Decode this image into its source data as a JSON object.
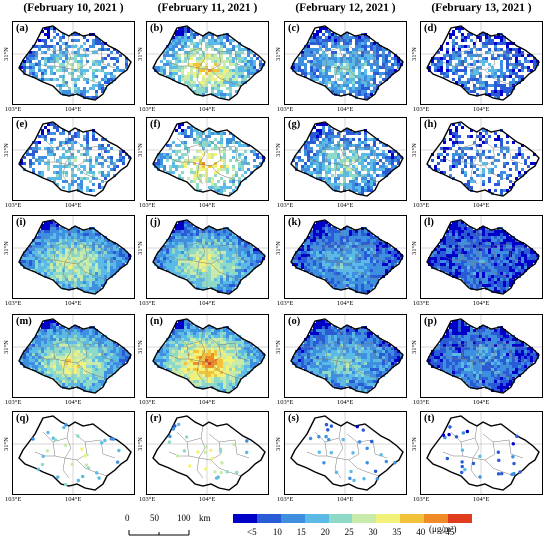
{
  "columns": [
    {
      "title": "(February 10, 2021 )"
    },
    {
      "title": "(February 11, 2021 )"
    },
    {
      "title": "(February 12, 2021 )"
    },
    {
      "title": "(February 13, 2021 )"
    }
  ],
  "axis": {
    "lat_label": "31°N",
    "lon_left": "103°E",
    "lon_mid": "104°E"
  },
  "panels": [
    {
      "label": "(a)",
      "row": 0,
      "col": 0,
      "coverage": 0.55,
      "level": 0.35
    },
    {
      "label": "(b)",
      "row": 0,
      "col": 1,
      "coverage": 0.75,
      "level": 0.55
    },
    {
      "label": "(c)",
      "row": 0,
      "col": 2,
      "coverage": 0.8,
      "level": 0.3
    },
    {
      "label": "(d)",
      "row": 0,
      "col": 3,
      "coverage": 0.6,
      "level": 0.2
    },
    {
      "label": "(e)",
      "row": 1,
      "col": 0,
      "coverage": 0.45,
      "level": 0.35
    },
    {
      "label": "(f)",
      "row": 1,
      "col": 1,
      "coverage": 0.55,
      "level": 0.55
    },
    {
      "label": "(g)",
      "row": 1,
      "col": 2,
      "coverage": 0.7,
      "level": 0.35
    },
    {
      "label": "(h)",
      "row": 1,
      "col": 3,
      "coverage": 0.4,
      "level": 0.18
    },
    {
      "label": "(i)",
      "row": 2,
      "col": 0,
      "coverage": 1.0,
      "level": 0.45
    },
    {
      "label": "(j)",
      "row": 2,
      "col": 1,
      "coverage": 1.0,
      "level": 0.45
    },
    {
      "label": "(k)",
      "row": 2,
      "col": 2,
      "coverage": 1.0,
      "level": 0.25
    },
    {
      "label": "(l)",
      "row": 2,
      "col": 3,
      "coverage": 1.0,
      "level": 0.15
    },
    {
      "label": "(m)",
      "row": 3,
      "col": 0,
      "coverage": 1.0,
      "level": 0.5
    },
    {
      "label": "(n)",
      "row": 3,
      "col": 1,
      "coverage": 1.0,
      "level": 0.65
    },
    {
      "label": "(o)",
      "row": 3,
      "col": 2,
      "coverage": 1.0,
      "level": 0.32
    },
    {
      "label": "(p)",
      "row": 3,
      "col": 3,
      "coverage": 1.0,
      "level": 0.2
    },
    {
      "label": "(q)",
      "row": 4,
      "col": 0,
      "coverage": 0.0,
      "level": 0.5,
      "stations": true
    },
    {
      "label": "(r)",
      "row": 4,
      "col": 1,
      "coverage": 0.0,
      "level": 0.55,
      "stations": true
    },
    {
      "label": "(s)",
      "row": 4,
      "col": 2,
      "coverage": 0.0,
      "level": 0.3,
      "stations": true
    },
    {
      "label": "(t)",
      "row": 4,
      "col": 3,
      "coverage": 0.0,
      "level": 0.2,
      "stations": true
    }
  ],
  "scalebar": {
    "ticks": [
      "0",
      "50",
      "100"
    ],
    "unit": "km"
  },
  "colorbar": {
    "colors": [
      "#0000c8",
      "#2a5bd7",
      "#3f8fe0",
      "#5bbbe6",
      "#8fd9c8",
      "#c8ebac",
      "#f2f27a",
      "#f2c23a",
      "#f08c28",
      "#e03c1e"
    ],
    "ticks": [
      "<5",
      "10",
      "15",
      "20",
      "25",
      "30",
      "35",
      "40",
      ">45"
    ],
    "unit": "(μg/m³)"
  }
}
